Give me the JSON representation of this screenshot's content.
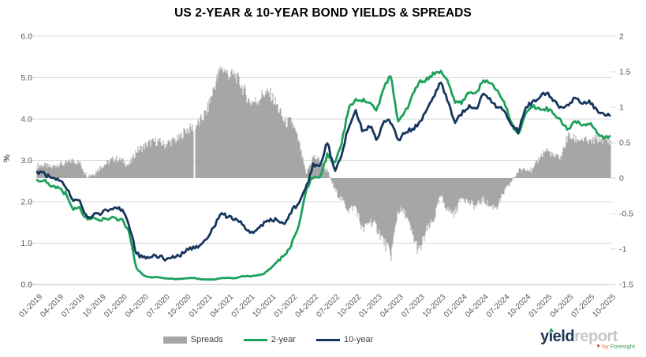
{
  "title": "US 2-YEAR & 10-YEAR BOND YIELDS & SPREADS",
  "chart_data": {
    "type": "combo-bar-line",
    "x_monthly_start": "01-2019",
    "x_monthly_end": "10-2025",
    "x_tick_labels": [
      "01-2019",
      "04-2019",
      "07-2019",
      "10-2019",
      "01-2020",
      "04-2020",
      "07-2020",
      "10-2020",
      "01-2021",
      "04-2021",
      "07-2021",
      "10-2021",
      "01-2022",
      "04-2022",
      "07-2022",
      "10-2022",
      "01-2023",
      "04-2023",
      "07-2023",
      "10-2023",
      "01-2024",
      "04-2024",
      "07-2024",
      "10-2024",
      "01-2025",
      "04-2025",
      "07-2025",
      "10-2025"
    ],
    "left_axis": {
      "label": "%",
      "range": [
        0,
        6
      ],
      "tick_labels": [
        "6.0",
        "5.0",
        "4.0",
        "3.0",
        "2.0",
        "1.0",
        "0.0"
      ],
      "tick_values": [
        6,
        5,
        4,
        3,
        2,
        1,
        0
      ]
    },
    "right_axis": {
      "range": [
        -1.5,
        2
      ],
      "tick_labels": [
        "2",
        "1.5",
        "1",
        "0.5",
        "0",
        "-0.5",
        "-1",
        "-1.5"
      ],
      "tick_values": [
        2,
        1.5,
        1,
        0.5,
        0,
        -0.5,
        -1,
        -1.5
      ]
    },
    "grid": true,
    "legend_position": "bottom",
    "series": [
      {
        "name": "Spreads",
        "type": "bar",
        "axis": "right",
        "color": "#A6A6A6",
        "values": [
          0.18,
          0.18,
          0.15,
          0.2,
          0.2,
          0.25,
          0.22,
          0.04,
          0.06,
          0.16,
          0.22,
          0.28,
          0.25,
          0.18,
          0.38,
          0.44,
          0.5,
          0.52,
          0.47,
          0.52,
          0.55,
          0.68,
          0.71,
          0.79,
          0.95,
          1.28,
          1.57,
          1.46,
          1.45,
          1.28,
          1.08,
          1.08,
          1.2,
          1.18,
          1.0,
          0.78,
          0.8,
          0.5,
          0.05,
          0.3,
          0.25,
          0.1,
          -0.15,
          -0.3,
          -0.45,
          -0.4,
          -0.75,
          -0.6,
          -0.7,
          -0.9,
          -1.1,
          -0.45,
          -0.5,
          -0.8,
          -1.05,
          -0.75,
          -0.6,
          -0.25,
          -0.45,
          -0.5,
          -0.25,
          -0.35,
          -0.4,
          -0.3,
          -0.4,
          -0.4,
          -0.2,
          -0.05,
          0.1,
          0.15,
          0.1,
          0.3,
          0.4,
          0.3,
          0.3,
          0.6,
          0.55,
          0.55,
          0.5,
          0.55,
          0.55,
          0.53
        ]
      },
      {
        "name": "2-year",
        "type": "line",
        "axis": "left",
        "color": "#1CA15B",
        "values": [
          2.5,
          2.5,
          2.4,
          2.32,
          2.2,
          1.8,
          1.85,
          1.58,
          1.62,
          1.55,
          1.6,
          1.6,
          1.55,
          1.3,
          0.4,
          0.22,
          0.17,
          0.18,
          0.15,
          0.14,
          0.13,
          0.15,
          0.16,
          0.13,
          0.12,
          0.12,
          0.15,
          0.16,
          0.15,
          0.2,
          0.2,
          0.22,
          0.26,
          0.4,
          0.55,
          0.7,
          1.0,
          1.45,
          2.3,
          2.6,
          2.55,
          3.15,
          2.9,
          3.4,
          4.25,
          4.5,
          4.45,
          4.4,
          4.2,
          4.8,
          5.05,
          3.9,
          4.15,
          4.55,
          4.9,
          4.95,
          5.1,
          5.15,
          4.9,
          4.4,
          4.4,
          4.65,
          4.6,
          4.95,
          4.85,
          4.7,
          4.4,
          3.9,
          3.6,
          4.15,
          4.3,
          4.25,
          4.25,
          4.15,
          3.95,
          3.75,
          3.95,
          3.85,
          3.9,
          3.7,
          3.55,
          3.55
        ]
      },
      {
        "name": "10-year",
        "type": "line",
        "axis": "left",
        "color": "#17365D",
        "values": [
          2.7,
          2.68,
          2.55,
          2.52,
          2.4,
          2.05,
          2.05,
          1.6,
          1.68,
          1.72,
          1.8,
          1.88,
          1.8,
          1.45,
          0.75,
          0.65,
          0.67,
          0.7,
          0.62,
          0.66,
          0.68,
          0.83,
          0.87,
          0.92,
          1.08,
          1.4,
          1.72,
          1.62,
          1.6,
          1.48,
          1.28,
          1.3,
          1.46,
          1.58,
          1.55,
          1.48,
          1.8,
          1.95,
          2.32,
          2.9,
          2.85,
          3.45,
          2.75,
          3.15,
          3.8,
          4.2,
          3.7,
          3.85,
          3.5,
          3.9,
          3.95,
          3.45,
          3.7,
          3.75,
          3.9,
          4.2,
          4.5,
          4.9,
          4.45,
          3.9,
          4.15,
          4.3,
          4.2,
          4.65,
          4.45,
          4.3,
          4.2,
          3.85,
          3.7,
          4.3,
          4.4,
          4.55,
          4.65,
          4.45,
          4.25,
          4.35,
          4.5,
          4.4,
          4.4,
          4.25,
          4.1,
          4.08
        ]
      }
    ]
  },
  "colors": {
    "grid": "#D9D9D9",
    "axis_line": "#BFBFBF",
    "axis_text": "#595959",
    "title_text": "#000000",
    "legend_text": "#404040",
    "spread": "#A6A6A6",
    "two_year": "#1CA15B",
    "ten_year": "#17365D"
  },
  "branding": {
    "logo_primary": "yield",
    "logo_secondary": "report",
    "byline_prefix": "by",
    "byline_name": "Foresight"
  }
}
